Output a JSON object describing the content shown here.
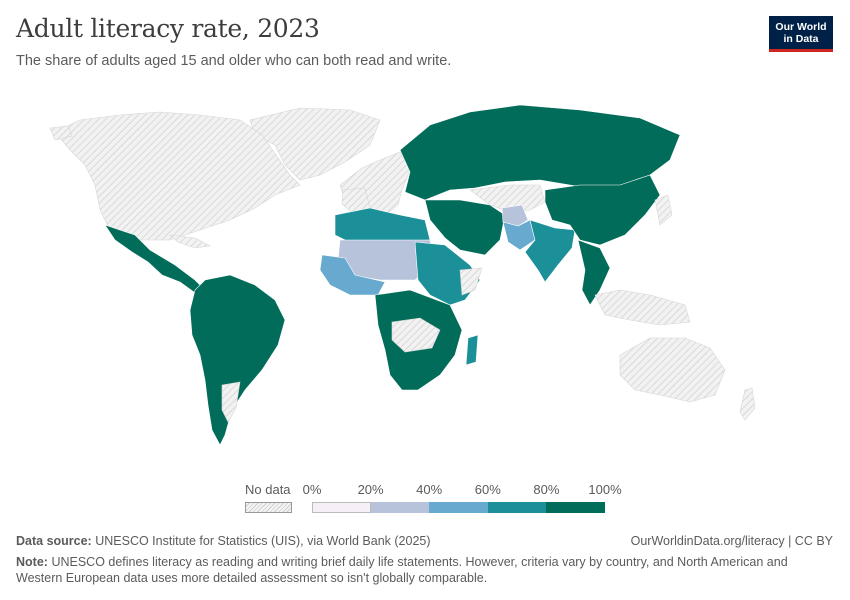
{
  "header": {
    "title": "Adult literacy rate, 2023",
    "subtitle": "The share of adults aged 15 and older who can both read and write."
  },
  "logo": {
    "line1": "Our World",
    "line2": "in Data",
    "bg_color": "#002147",
    "accent_color": "#ce261e"
  },
  "legend": {
    "no_data_label": "No data",
    "ticks": [
      "0%",
      "20%",
      "40%",
      "60%",
      "80%",
      "100%"
    ],
    "bins": [
      {
        "range": "0-20%",
        "color": "#f6eff7"
      },
      {
        "range": "20-40%",
        "color": "#b6c3db"
      },
      {
        "range": "40-60%",
        "color": "#67a9cf"
      },
      {
        "range": "60-80%",
        "color": "#1c9099"
      },
      {
        "range": "80-100%",
        "color": "#016c59"
      }
    ],
    "no_data_color": "#e8e8e8"
  },
  "footer": {
    "source_label": "Data source:",
    "source_text": "UNESCO Institute for Statistics (UIS), via World Bank (2025)",
    "link": "OurWorldinData.org/literacy | CC BY",
    "note_label": "Note:",
    "note_text": "UNESCO defines literacy as reading and writing brief daily life statements. However, criteria vary by country, and North American and Western European data uses more detailed assessment so isn't globally comparable."
  },
  "map_regions": [
    {
      "name": "north-america",
      "bin": "no-data"
    },
    {
      "name": "greenland",
      "bin": "no-data"
    },
    {
      "name": "mexico-central-america",
      "bin": "80-100%"
    },
    {
      "name": "south-america",
      "bin": "80-100%"
    },
    {
      "name": "europe-west",
      "bin": "no-data"
    },
    {
      "name": "europe-east-russia",
      "bin": "80-100%"
    },
    {
      "name": "north-africa",
      "bin": "60-80%"
    },
    {
      "name": "sahel",
      "bin": "20-40%"
    },
    {
      "name": "west-africa",
      "bin": "40-60%"
    },
    {
      "name": "central-southern-africa",
      "bin": "80-100%"
    },
    {
      "name": "east-africa",
      "bin": "60-80%"
    },
    {
      "name": "middle-east",
      "bin": "80-100%"
    },
    {
      "name": "afghanistan",
      "bin": "20-40%"
    },
    {
      "name": "pakistan",
      "bin": "40-60%"
    },
    {
      "name": "india",
      "bin": "60-80%"
    },
    {
      "name": "east-asia",
      "bin": "80-100%"
    },
    {
      "name": "southeast-asia",
      "bin": "80-100%"
    },
    {
      "name": "australia",
      "bin": "no-data"
    },
    {
      "name": "madagascar",
      "bin": "60-80%"
    },
    {
      "name": "japan",
      "bin": "no-data"
    }
  ]
}
